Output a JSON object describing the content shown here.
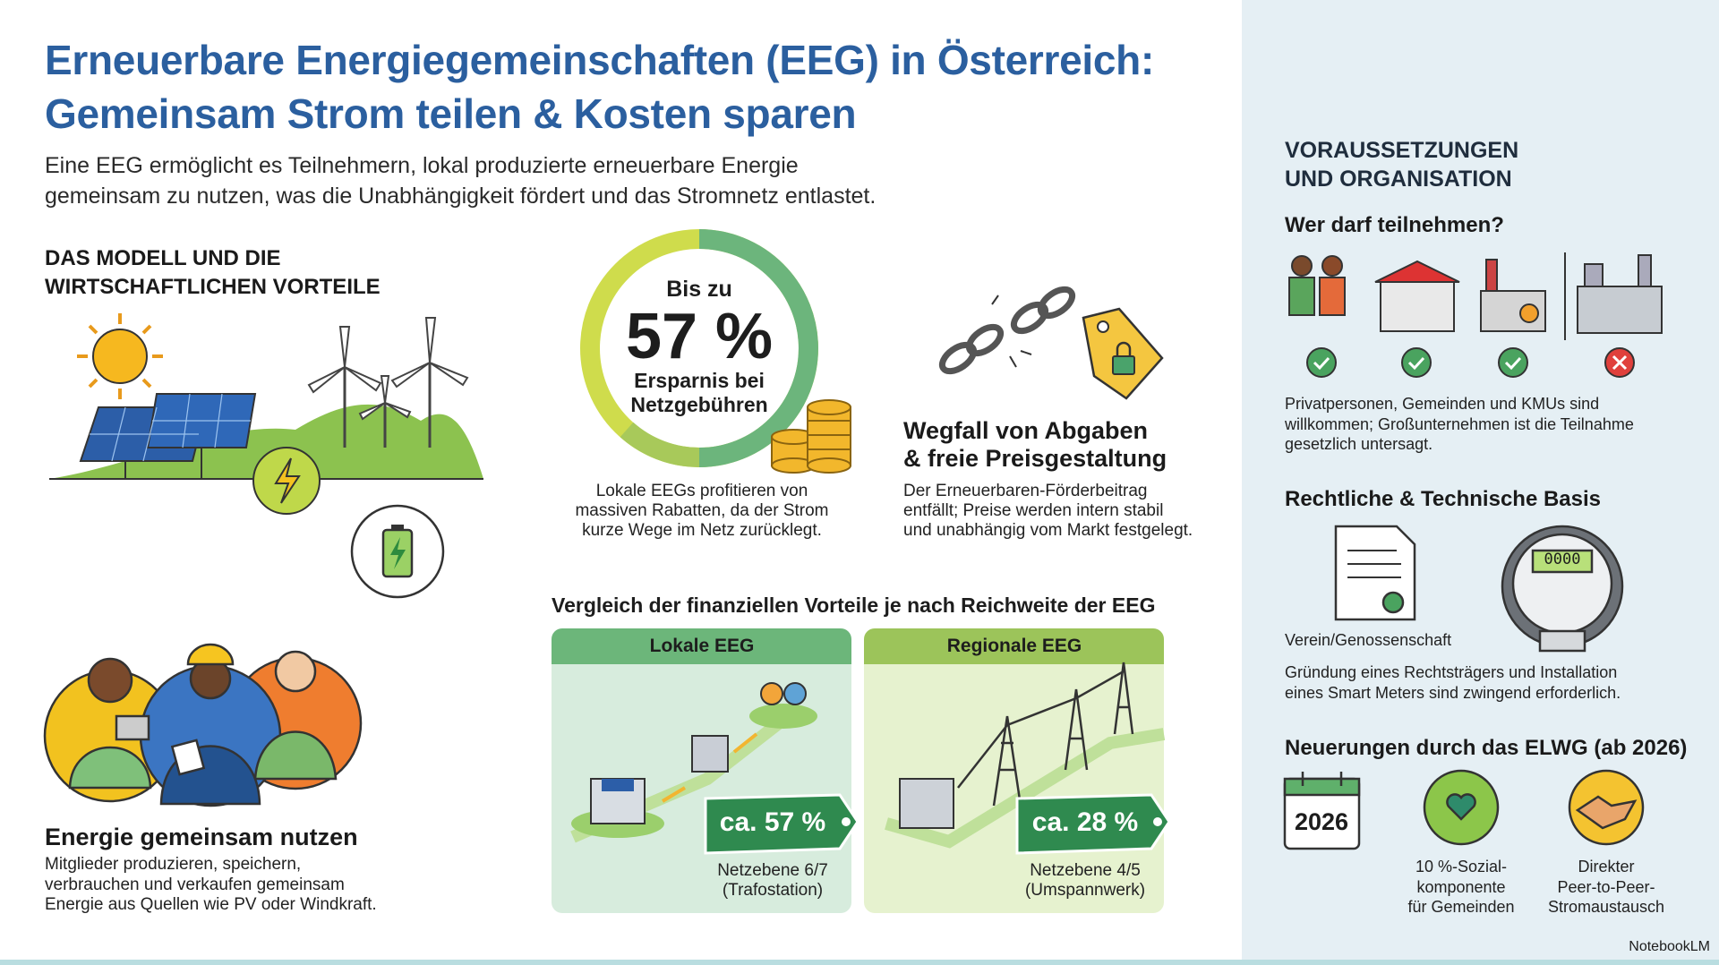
{
  "header": {
    "title_lines": [
      "Erneuerbare Energiegemeinschaften (EEG) in Österreich:",
      "Gemeinsam Strom teilen & Kosten sparen"
    ],
    "intro_lines": [
      "Eine EEG ermöglicht es Teilnehmern, lokal produzierte erneuerbare Energie",
      "gemeinsam zu nutzen, was die Unabhängigkeit fördert und das Stromnetz entlastet."
    ]
  },
  "model": {
    "heading_lines": [
      "DAS MODELL UND DIE",
      "WIRTSCHAFTLICHEN VORTEILE"
    ]
  },
  "savings": {
    "prefix": "Bis zu",
    "value": "57 %",
    "label_lines": [
      "Ersparnis bei",
      "Netzgebühren"
    ],
    "text_lines": [
      "Lokale EEGs profitieren von",
      "massiven Rabatten, da der Strom",
      "kurze Wege im Netz zurücklegt."
    ]
  },
  "levies": {
    "heading_lines": [
      "Wegfall von Abgaben",
      "& freie Preisgestaltung"
    ],
    "text_lines": [
      "Der Erneuerbaren-Förderbeitrag",
      "entfällt; Preise werden intern stabil",
      "und unabhängig vom Markt festgelegt."
    ]
  },
  "community": {
    "heading": "Energie gemeinsam nutzen",
    "text_lines": [
      "Mitglieder produzieren, speichern,",
      "verbrauchen und verkaufen gemeinsam",
      "Energie aus Quellen wie PV oder Windkraft."
    ]
  },
  "comparison": {
    "title": "Vergleich der finanziellen Vorteile je nach Reichweite der EEG",
    "cards": [
      {
        "title": "Lokale EEG",
        "tag": "ca. 57 %",
        "level_lines": [
          "Netzebene 6/7",
          "(Trafostation)"
        ]
      },
      {
        "title": "Regionale EEG",
        "tag": "ca. 28 %",
        "level_lines": [
          "Netzebene 4/5",
          "(Umspannwerk)"
        ]
      }
    ]
  },
  "sidebar": {
    "heading_lines": [
      "VORAUSSETZUNGEN",
      "UND ORGANISATION"
    ],
    "participants": {
      "heading": "Wer darf teilnehmen?",
      "text_lines": [
        "Privatpersonen, Gemeinden und KMUs sind",
        "willkommen; Großunternehmen ist die Teilnahme",
        "gesetzlich untersagt."
      ]
    },
    "legal": {
      "heading": "Rechtliche & Technische Basis",
      "meter_display": "0000",
      "doc_label": "Verein/Genossenschaft",
      "text_lines": [
        "Gründung eines Rechtsträgers und Installation",
        "eines Smart Meters sind zwingend erforderlich."
      ]
    },
    "news": {
      "heading": "Neuerungen durch das ELWG (ab 2026)",
      "calendar": "2026",
      "items": [
        {
          "lines": [
            "10 %-Sozial-",
            "komponente",
            "für Gemeinden"
          ]
        },
        {
          "lines": [
            "Direkter",
            "Peer-to-Peer-",
            "Stromaustausch"
          ]
        }
      ]
    }
  },
  "footer": {
    "brand": "NotebookLM"
  }
}
